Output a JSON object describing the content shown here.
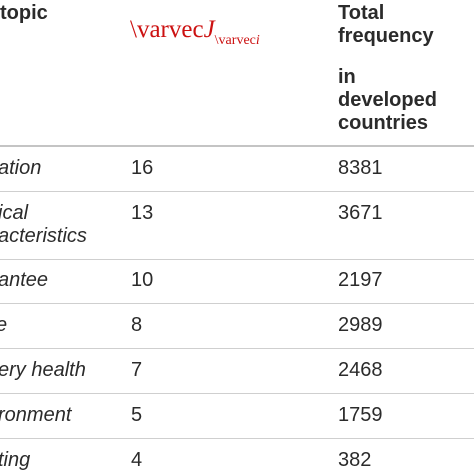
{
  "table": {
    "headers": {
      "topic": "topic",
      "j_main_cmd": "\\varvec",
      "j_main_var": "J",
      "j_sub_cmd": "\\varvec",
      "j_sub_var": "i",
      "freq_line1": "Total",
      "freq_line2": "frequency",
      "freq_line3": "in",
      "freq_line4": "developed",
      "freq_line5": "countries"
    },
    "rows": [
      {
        "topic": [
          "ation"
        ],
        "j": "16",
        "freq": "8381"
      },
      {
        "topic": [
          "ical",
          "acteristics"
        ],
        "j": "13",
        "freq": "3671"
      },
      {
        "topic": [
          "antee"
        ],
        "j": "10",
        "freq": "2197"
      },
      {
        "topic": [
          "e"
        ],
        "j": "8",
        "freq": "2989"
      },
      {
        "topic": [
          "ery health"
        ],
        "j": "7",
        "freq": "2468"
      },
      {
        "topic": [
          "ronment"
        ],
        "j": "5",
        "freq": "1759"
      },
      {
        "topic": [
          "ting"
        ],
        "j": "4",
        "freq": "382"
      }
    ]
  }
}
